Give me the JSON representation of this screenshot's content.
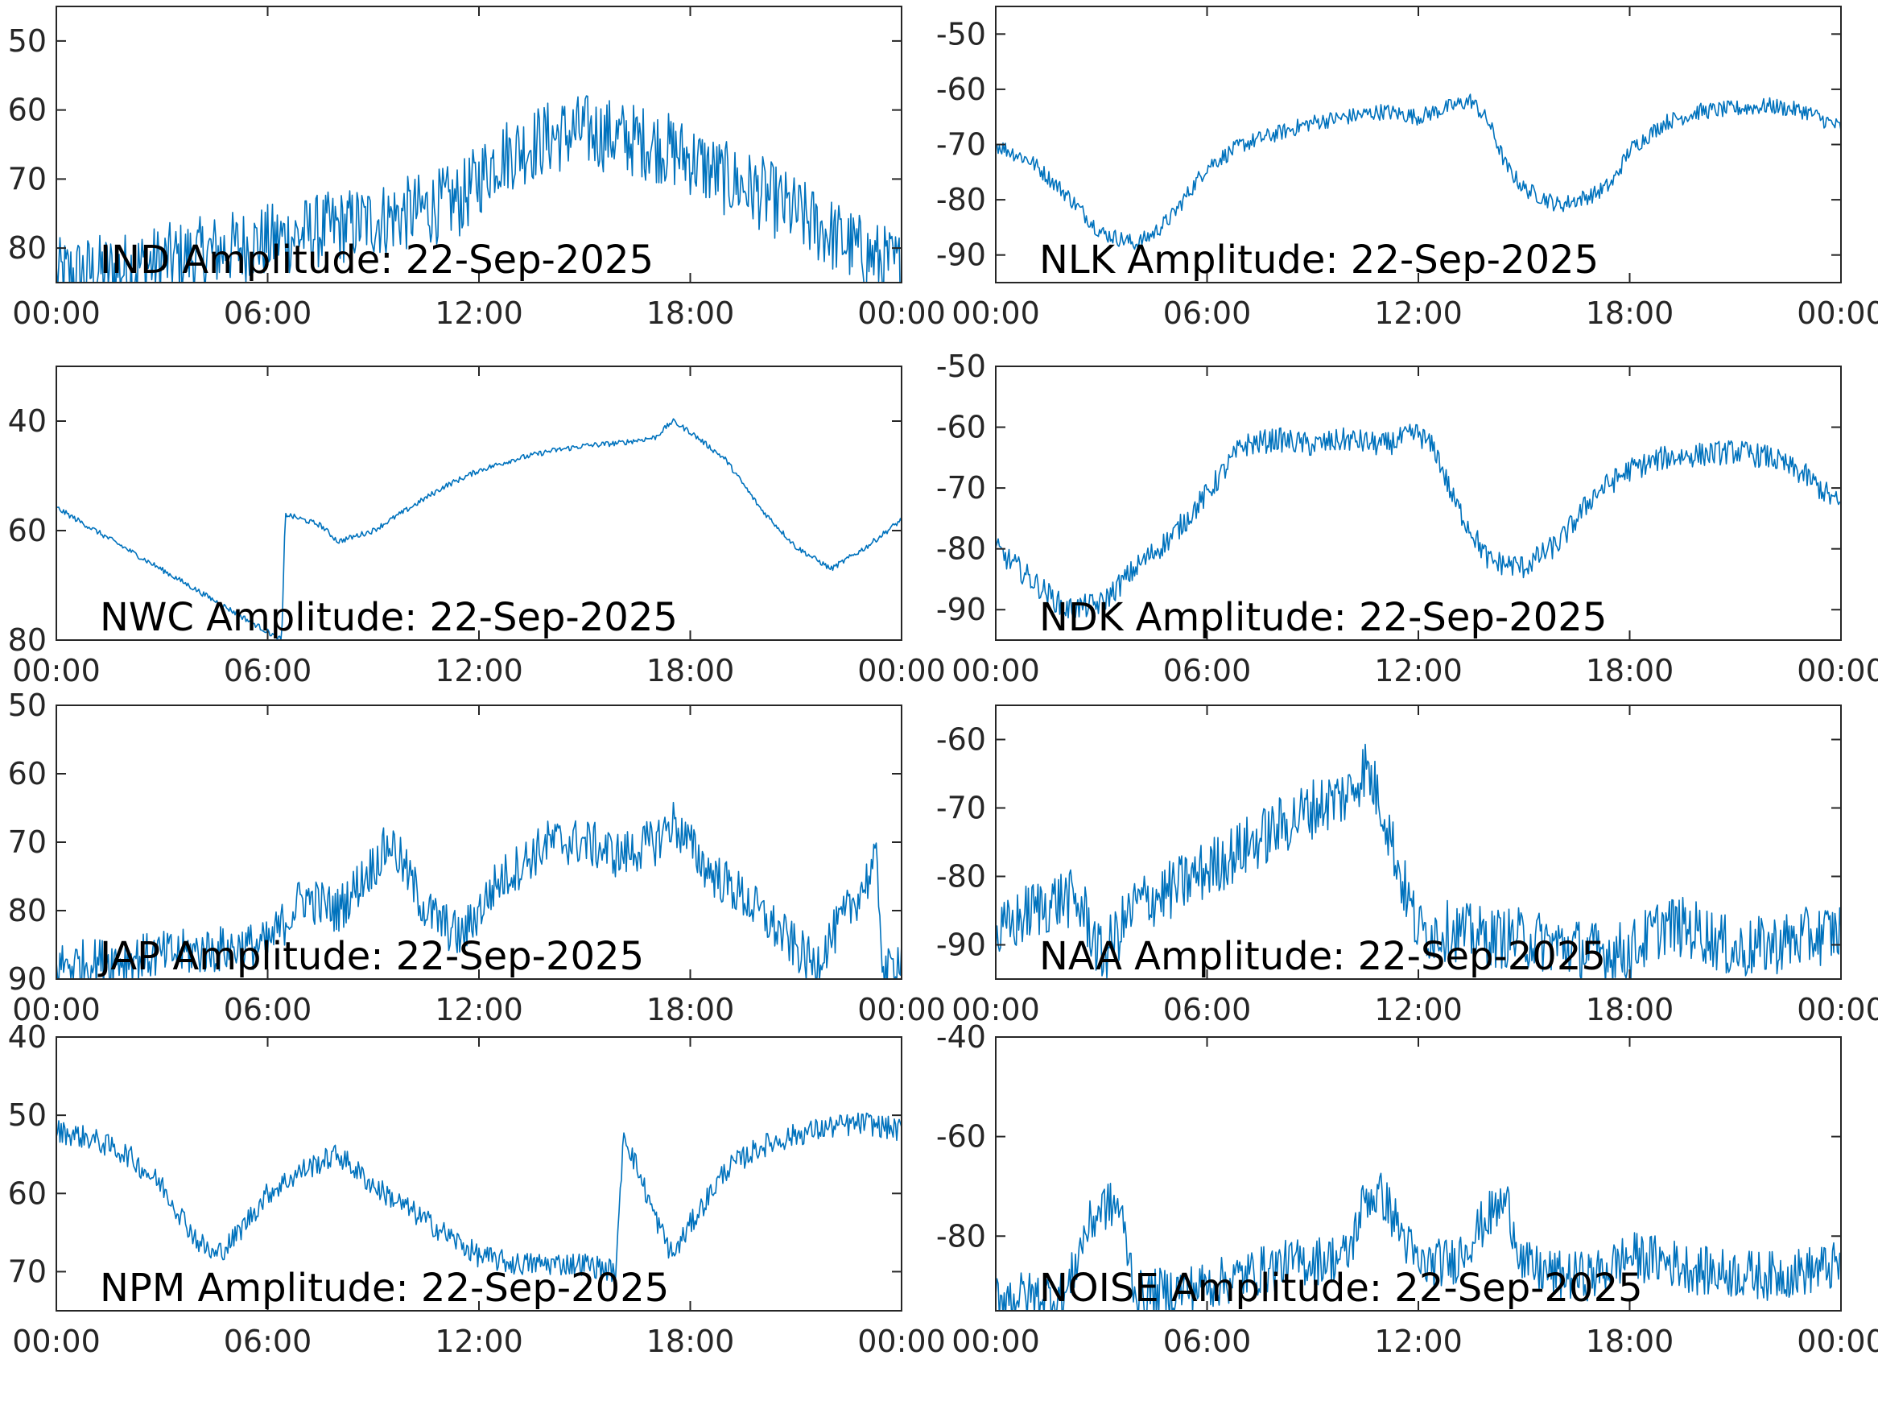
{
  "figure": {
    "date": "22-Sep-2025",
    "trace_color": "#0072BD"
  },
  "chart_data": [
    {
      "type": "line",
      "station": "IND",
      "title": "IND Amplitude: 22-Sep-2025",
      "xlim": [
        0,
        24
      ],
      "x_tick_labels": [
        "00:00",
        "06:00",
        "12:00",
        "18:00",
        "00:00"
      ],
      "ylim": [
        -85,
        -45
      ],
      "y_ticks": [
        -50,
        -60,
        -70,
        -80
      ],
      "y_tick_labels": [
        "50",
        "60",
        "70",
        "80"
      ],
      "noise": 5.5,
      "series": [
        {
          "x": [
            0,
            2,
            4,
            6,
            8,
            10,
            11.5,
            12.5,
            14,
            15,
            16,
            17,
            18,
            19,
            20,
            21,
            22,
            23,
            24
          ],
          "y": [
            -84,
            -83,
            -81,
            -79,
            -77,
            -75,
            -73,
            -67,
            -64,
            -63,
            -64,
            -65,
            -67,
            -70,
            -72,
            -75,
            -78,
            -81,
            -83
          ]
        }
      ]
    },
    {
      "type": "line",
      "station": "NLK",
      "title": "NLK Amplitude: 22-Sep-2025",
      "xlim": [
        0,
        24
      ],
      "x_tick_labels": [
        "00:00",
        "06:00",
        "12:00",
        "18:00",
        "00:00"
      ],
      "ylim": [
        -95,
        -45
      ],
      "y_ticks": [
        -50,
        -60,
        -70,
        -80,
        -90
      ],
      "y_tick_labels": [
        "-50",
        "-60",
        "-70",
        "-80",
        "-90"
      ],
      "noise": 1.5,
      "series": [
        {
          "x": [
            0,
            1,
            2,
            3,
            4,
            4.5,
            5,
            6,
            7,
            8,
            9,
            10,
            11,
            12,
            13,
            13.5,
            14,
            14.5,
            15,
            16,
            17,
            17.5,
            18,
            19,
            20,
            21,
            22,
            23,
            24
          ],
          "y": [
            -70,
            -73,
            -79,
            -86,
            -88,
            -86,
            -83,
            -74,
            -70,
            -68,
            -66,
            -65,
            -64,
            -65,
            -63,
            -62,
            -66,
            -74,
            -78,
            -81,
            -79,
            -77,
            -71,
            -66,
            -64,
            -63.5,
            -63,
            -64,
            -67
          ]
        }
      ]
    },
    {
      "type": "line",
      "station": "NWC",
      "title": "NWC Amplitude: 22-Sep-2025",
      "xlim": [
        0,
        24
      ],
      "x_tick_labels": [
        "00:00",
        "06:00",
        "12:00",
        "18:00",
        "00:00"
      ],
      "ylim": [
        -80,
        -30
      ],
      "y_ticks": [
        -40,
        -60,
        -80
      ],
      "y_tick_labels": [
        "40",
        "60",
        "80"
      ],
      "noise": 0.5,
      "series": [
        {
          "x": [
            0.05,
            6.4,
            6.5,
            7.5,
            8,
            9,
            10,
            11,
            12,
            13,
            14,
            15,
            16,
            17,
            17.5,
            18,
            19,
            20,
            21,
            22,
            23,
            24
          ],
          "y": [
            -56,
            -80,
            -57,
            -59,
            -62,
            -60,
            -56,
            -52,
            -49,
            -47,
            -45.5,
            -44.5,
            -44,
            -43,
            -40,
            -42,
            -47,
            -56,
            -63,
            -67,
            -63,
            -58
          ]
        }
      ]
    },
    {
      "type": "line",
      "station": "NDK",
      "title": "NDK Amplitude: 22-Sep-2025",
      "xlim": [
        0,
        24
      ],
      "x_tick_labels": [
        "00:00",
        "06:00",
        "12:00",
        "18:00",
        "00:00"
      ],
      "ylim": [
        -95,
        -50
      ],
      "y_ticks": [
        -50,
        -60,
        -70,
        -80,
        -90
      ],
      "y_tick_labels": [
        "-50",
        "-60",
        "-70",
        "-80",
        "-90"
      ],
      "noise": 2.0,
      "series": [
        {
          "x": [
            0,
            1,
            2,
            3,
            4,
            5,
            6,
            7,
            8,
            9,
            10,
            11,
            12,
            12.5,
            13,
            14,
            15,
            16,
            17,
            18,
            19,
            20,
            21,
            22,
            23,
            24
          ],
          "y": [
            -80,
            -85,
            -90,
            -89,
            -83,
            -78,
            -71,
            -63,
            -62,
            -63,
            -62,
            -63,
            -61,
            -64,
            -72,
            -82,
            -83,
            -79,
            -71,
            -67,
            -65,
            -64.5,
            -64,
            -65,
            -68,
            -73
          ]
        }
      ]
    },
    {
      "type": "line",
      "station": "JAP",
      "title": "JAP Amplitude: 22-Sep-2025",
      "xlim": [
        0,
        24
      ],
      "x_tick_labels": [
        "00:00",
        "06:00",
        "12:00",
        "18:00",
        "00:00"
      ],
      "ylim": [
        -90,
        -50
      ],
      "y_ticks": [
        -50,
        -60,
        -70,
        -80,
        -90
      ],
      "y_tick_labels": [
        "50",
        "60",
        "70",
        "80",
        "90"
      ],
      "noise": 3.5,
      "series": [
        {
          "x": [
            0,
            2,
            4,
            6,
            7,
            8,
            9.5,
            10.5,
            11.5,
            12.5,
            14,
            15,
            16,
            17,
            17.5,
            18.5,
            19.5,
            20.5,
            21.5,
            22.5,
            23.3,
            23.5,
            24
          ],
          "y": [
            -88,
            -87,
            -86,
            -85,
            -78,
            -80,
            -70,
            -80,
            -84,
            -76,
            -70,
            -70,
            -72,
            -70,
            -67,
            -74,
            -78,
            -83,
            -88,
            -80,
            -73,
            -90,
            -86
          ]
        }
      ]
    },
    {
      "type": "line",
      "station": "NAA",
      "title": "NAA Amplitude: 22-Sep-2025",
      "xlim": [
        0,
        24
      ],
      "x_tick_labels": [
        "00:00",
        "06:00",
        "12:00",
        "18:00",
        "00:00"
      ],
      "ylim": [
        -95,
        -55
      ],
      "y_ticks": [
        -60,
        -70,
        -80,
        -90
      ],
      "y_tick_labels": [
        "-60",
        "-70",
        "-80",
        "-90"
      ],
      "noise": 4.5,
      "series": [
        {
          "x": [
            0,
            1,
            2,
            2.5,
            3,
            4,
            5,
            6,
            7,
            8,
            9,
            10,
            10.5,
            11,
            11.5,
            12,
            13,
            14,
            15,
            16,
            17,
            18,
            19,
            20,
            21,
            22,
            23,
            24
          ],
          "y": [
            -89,
            -85,
            -83,
            -85,
            -92,
            -84,
            -82,
            -79,
            -76,
            -73,
            -70,
            -68,
            -64,
            -70,
            -80,
            -88,
            -88,
            -89,
            -89,
            -90,
            -91,
            -91,
            -87,
            -88,
            -91,
            -90,
            -89,
            -88
          ]
        }
      ]
    },
    {
      "type": "line",
      "station": "NPM",
      "title": "NPM Amplitude: 22-Sep-2025",
      "xlim": [
        0,
        24
      ],
      "x_tick_labels": [
        "00:00",
        "06:00",
        "12:00",
        "18:00",
        "00:00"
      ],
      "ylim": [
        -75,
        -40
      ],
      "y_ticks": [
        -40,
        -50,
        -60,
        -70
      ],
      "y_tick_labels": [
        "40",
        "50",
        "60",
        "70"
      ],
      "noise": 1.5,
      "series": [
        {
          "x": [
            0,
            1,
            2,
            3,
            4,
            4.5,
            5,
            6,
            7,
            8,
            9,
            10,
            11,
            12,
            13,
            14,
            15,
            15.9,
            16.1,
            17,
            17.5,
            18,
            19,
            20,
            21,
            22,
            23,
            24
          ],
          "y": [
            -52,
            -53,
            -55,
            -59,
            -66,
            -68,
            -66,
            -60,
            -57,
            -55,
            -59,
            -62,
            -65,
            -68,
            -69,
            -69,
            -69,
            -70,
            -52,
            -63,
            -68,
            -64,
            -57,
            -54,
            -52.5,
            -51.5,
            -51,
            -52
          ]
        }
      ]
    },
    {
      "type": "line",
      "station": "NOISE",
      "title": "NOISE Amplitude: 22-Sep-2025",
      "xlim": [
        0,
        24
      ],
      "x_tick_labels": [
        "00:00",
        "06:00",
        "12:00",
        "18:00",
        "00:00"
      ],
      "ylim": [
        -95,
        -40
      ],
      "y_ticks": [
        -40,
        -60,
        -80
      ],
      "y_tick_labels": [
        "-40",
        "-60",
        "-80"
      ],
      "noise": 5.0,
      "series": [
        {
          "x": [
            0,
            2,
            2.5,
            3,
            3.5,
            4,
            6,
            8,
            10,
            10.5,
            11,
            12,
            13,
            14,
            14.5,
            15,
            16,
            17,
            18,
            19,
            20,
            22,
            24
          ],
          "y": [
            -92,
            -92,
            -80,
            -74,
            -74,
            -92,
            -90,
            -86,
            -84,
            -72,
            -72,
            -86,
            -85,
            -76,
            -73,
            -86,
            -88,
            -88,
            -84,
            -85,
            -87,
            -88,
            -86
          ]
        }
      ]
    }
  ]
}
